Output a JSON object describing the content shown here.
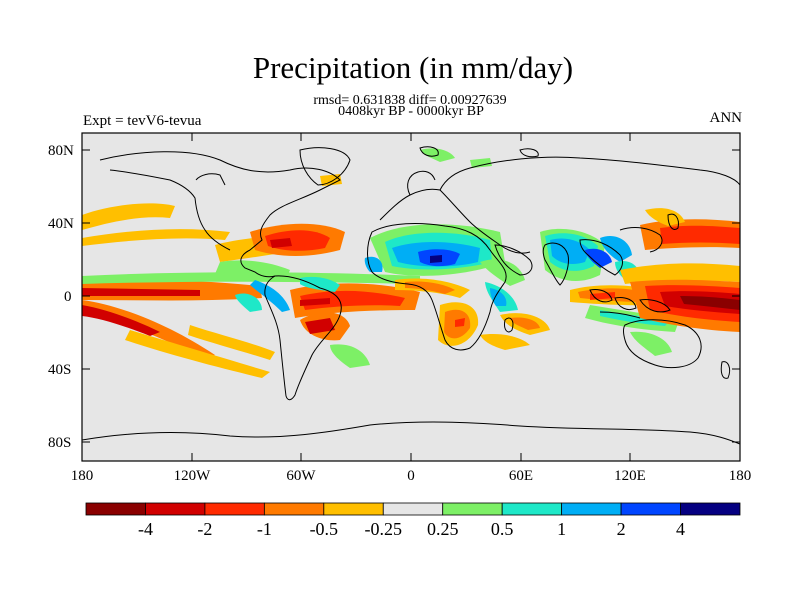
{
  "title": "Precipitation (in mm/day)",
  "subtitle_stats": "rmsd= 0.631838 diff= 0.00927639",
  "subtitle_period": "0408kyr BP - 0000kyr BP",
  "left_label": "Expt = tevV6-tevua",
  "right_label": "ANN",
  "lat_ticks": [
    "80N",
    "40N",
    "0",
    "40S",
    "80S"
  ],
  "lon_ticks": [
    "180",
    "120W",
    "60W",
    "0",
    "60E",
    "120E",
    "180"
  ],
  "colorbar": {
    "labels": [
      "-4",
      "-2",
      "-1",
      "-0.5",
      "-0.25",
      "0.25",
      "0.5",
      "1",
      "2",
      "4"
    ],
    "colors": [
      "#8a0000",
      "#d10000",
      "#ff2a00",
      "#ff7a00",
      "#ffbf00",
      "#e6e6e6",
      "#7df066",
      "#1ee8c8",
      "#00aef5",
      "#0045ff",
      "#050081"
    ]
  }
}
